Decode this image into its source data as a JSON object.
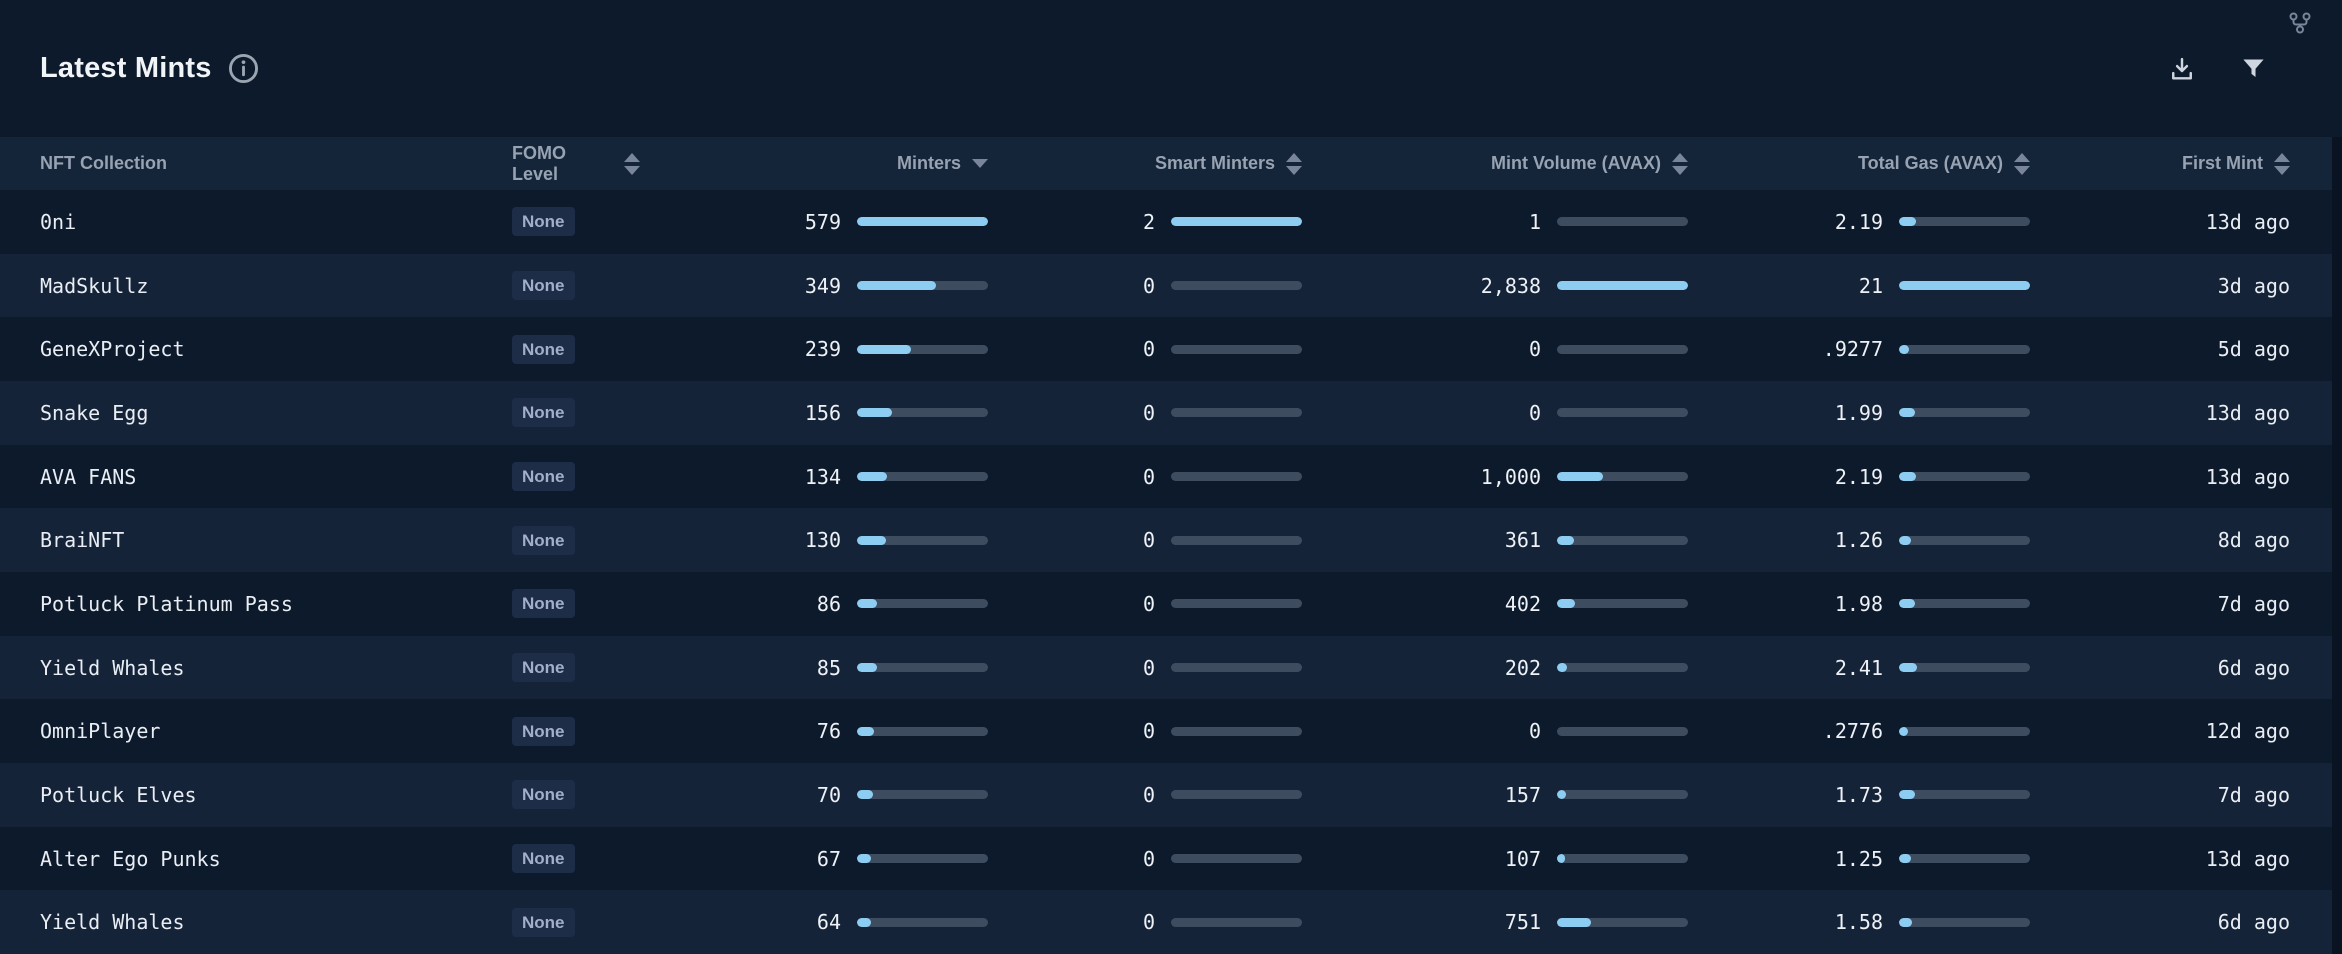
{
  "header": {
    "title": "Latest Mints"
  },
  "colors": {
    "bar_fill": "#8ecdf2",
    "bar_track": "#3e4c60",
    "row_dark": "#0d1a2b",
    "row_light": "#152338",
    "header_row": "#152539",
    "badge_bg": "#1e2d47"
  },
  "table": {
    "columns": [
      {
        "label": "NFT Collection",
        "sort": "none"
      },
      {
        "label": "FOMO Level",
        "sort": "both"
      },
      {
        "label": "Minters",
        "sort": "desc"
      },
      {
        "label": "Smart Minters",
        "sort": "both"
      },
      {
        "label": "Mint Volume (AVAX)",
        "sort": "both"
      },
      {
        "label": "Total Gas (AVAX)",
        "sort": "both"
      },
      {
        "label": "First Mint",
        "sort": "both"
      }
    ],
    "rows": [
      {
        "name": "0ni",
        "fomo": "None",
        "minters": "579",
        "minters_pct": 100,
        "smart": "2",
        "smart_pct": 100,
        "volume": "1",
        "volume_pct": 0,
        "gas": "2.19",
        "gas_pct": 13,
        "first_mint": "13d ago"
      },
      {
        "name": "MadSkullz",
        "fomo": "None",
        "minters": "349",
        "minters_pct": 60,
        "smart": "0",
        "smart_pct": 0,
        "volume": "2,838",
        "volume_pct": 100,
        "gas": "21",
        "gas_pct": 100,
        "first_mint": "3d ago"
      },
      {
        "name": "GeneXProject",
        "fomo": "None",
        "minters": "239",
        "minters_pct": 41,
        "smart": "0",
        "smart_pct": 0,
        "volume": "0",
        "volume_pct": 0,
        "gas": ".9277",
        "gas_pct": 8,
        "first_mint": "5d ago"
      },
      {
        "name": "Snake Egg",
        "fomo": "None",
        "minters": "156",
        "minters_pct": 27,
        "smart": "0",
        "smart_pct": 0,
        "volume": "0",
        "volume_pct": 0,
        "gas": "1.99",
        "gas_pct": 12,
        "first_mint": "13d ago"
      },
      {
        "name": "AVA FANS",
        "fomo": "None",
        "minters": "134",
        "minters_pct": 23,
        "smart": "0",
        "smart_pct": 0,
        "volume": "1,000",
        "volume_pct": 35,
        "gas": "2.19",
        "gas_pct": 13,
        "first_mint": "13d ago"
      },
      {
        "name": "BraiNFT",
        "fomo": "None",
        "minters": "130",
        "minters_pct": 22,
        "smart": "0",
        "smart_pct": 0,
        "volume": "361",
        "volume_pct": 13,
        "gas": "1.26",
        "gas_pct": 9,
        "first_mint": "8d ago"
      },
      {
        "name": "Potluck Platinum Pass",
        "fomo": "None",
        "minters": "86",
        "minters_pct": 15,
        "smart": "0",
        "smart_pct": 0,
        "volume": "402",
        "volume_pct": 14,
        "gas": "1.98",
        "gas_pct": 12,
        "first_mint": "7d ago"
      },
      {
        "name": "Yield Whales",
        "fomo": "None",
        "minters": "85",
        "minters_pct": 15,
        "smart": "0",
        "smart_pct": 0,
        "volume": "202",
        "volume_pct": 8,
        "gas": "2.41",
        "gas_pct": 14,
        "first_mint": "6d ago"
      },
      {
        "name": "OmniPlayer",
        "fomo": "None",
        "minters": "76",
        "minters_pct": 13,
        "smart": "0",
        "smart_pct": 0,
        "volume": "0",
        "volume_pct": 0,
        "gas": ".2776",
        "gas_pct": 7,
        "first_mint": "12d ago"
      },
      {
        "name": "Potluck Elves",
        "fomo": "None",
        "minters": "70",
        "minters_pct": 12,
        "smart": "0",
        "smart_pct": 0,
        "volume": "157",
        "volume_pct": 7,
        "gas": "1.73",
        "gas_pct": 12,
        "first_mint": "7d ago"
      },
      {
        "name": "Alter Ego Punks",
        "fomo": "None",
        "minters": "67",
        "minters_pct": 11,
        "smart": "0",
        "smart_pct": 0,
        "volume": "107",
        "volume_pct": 6,
        "gas": "1.25",
        "gas_pct": 9,
        "first_mint": "13d ago"
      },
      {
        "name": "Yield Whales",
        "fomo": "None",
        "minters": "64",
        "minters_pct": 11,
        "smart": "0",
        "smart_pct": 0,
        "volume": "751",
        "volume_pct": 26,
        "gas": "1.58",
        "gas_pct": 10,
        "first_mint": "6d ago"
      }
    ]
  }
}
